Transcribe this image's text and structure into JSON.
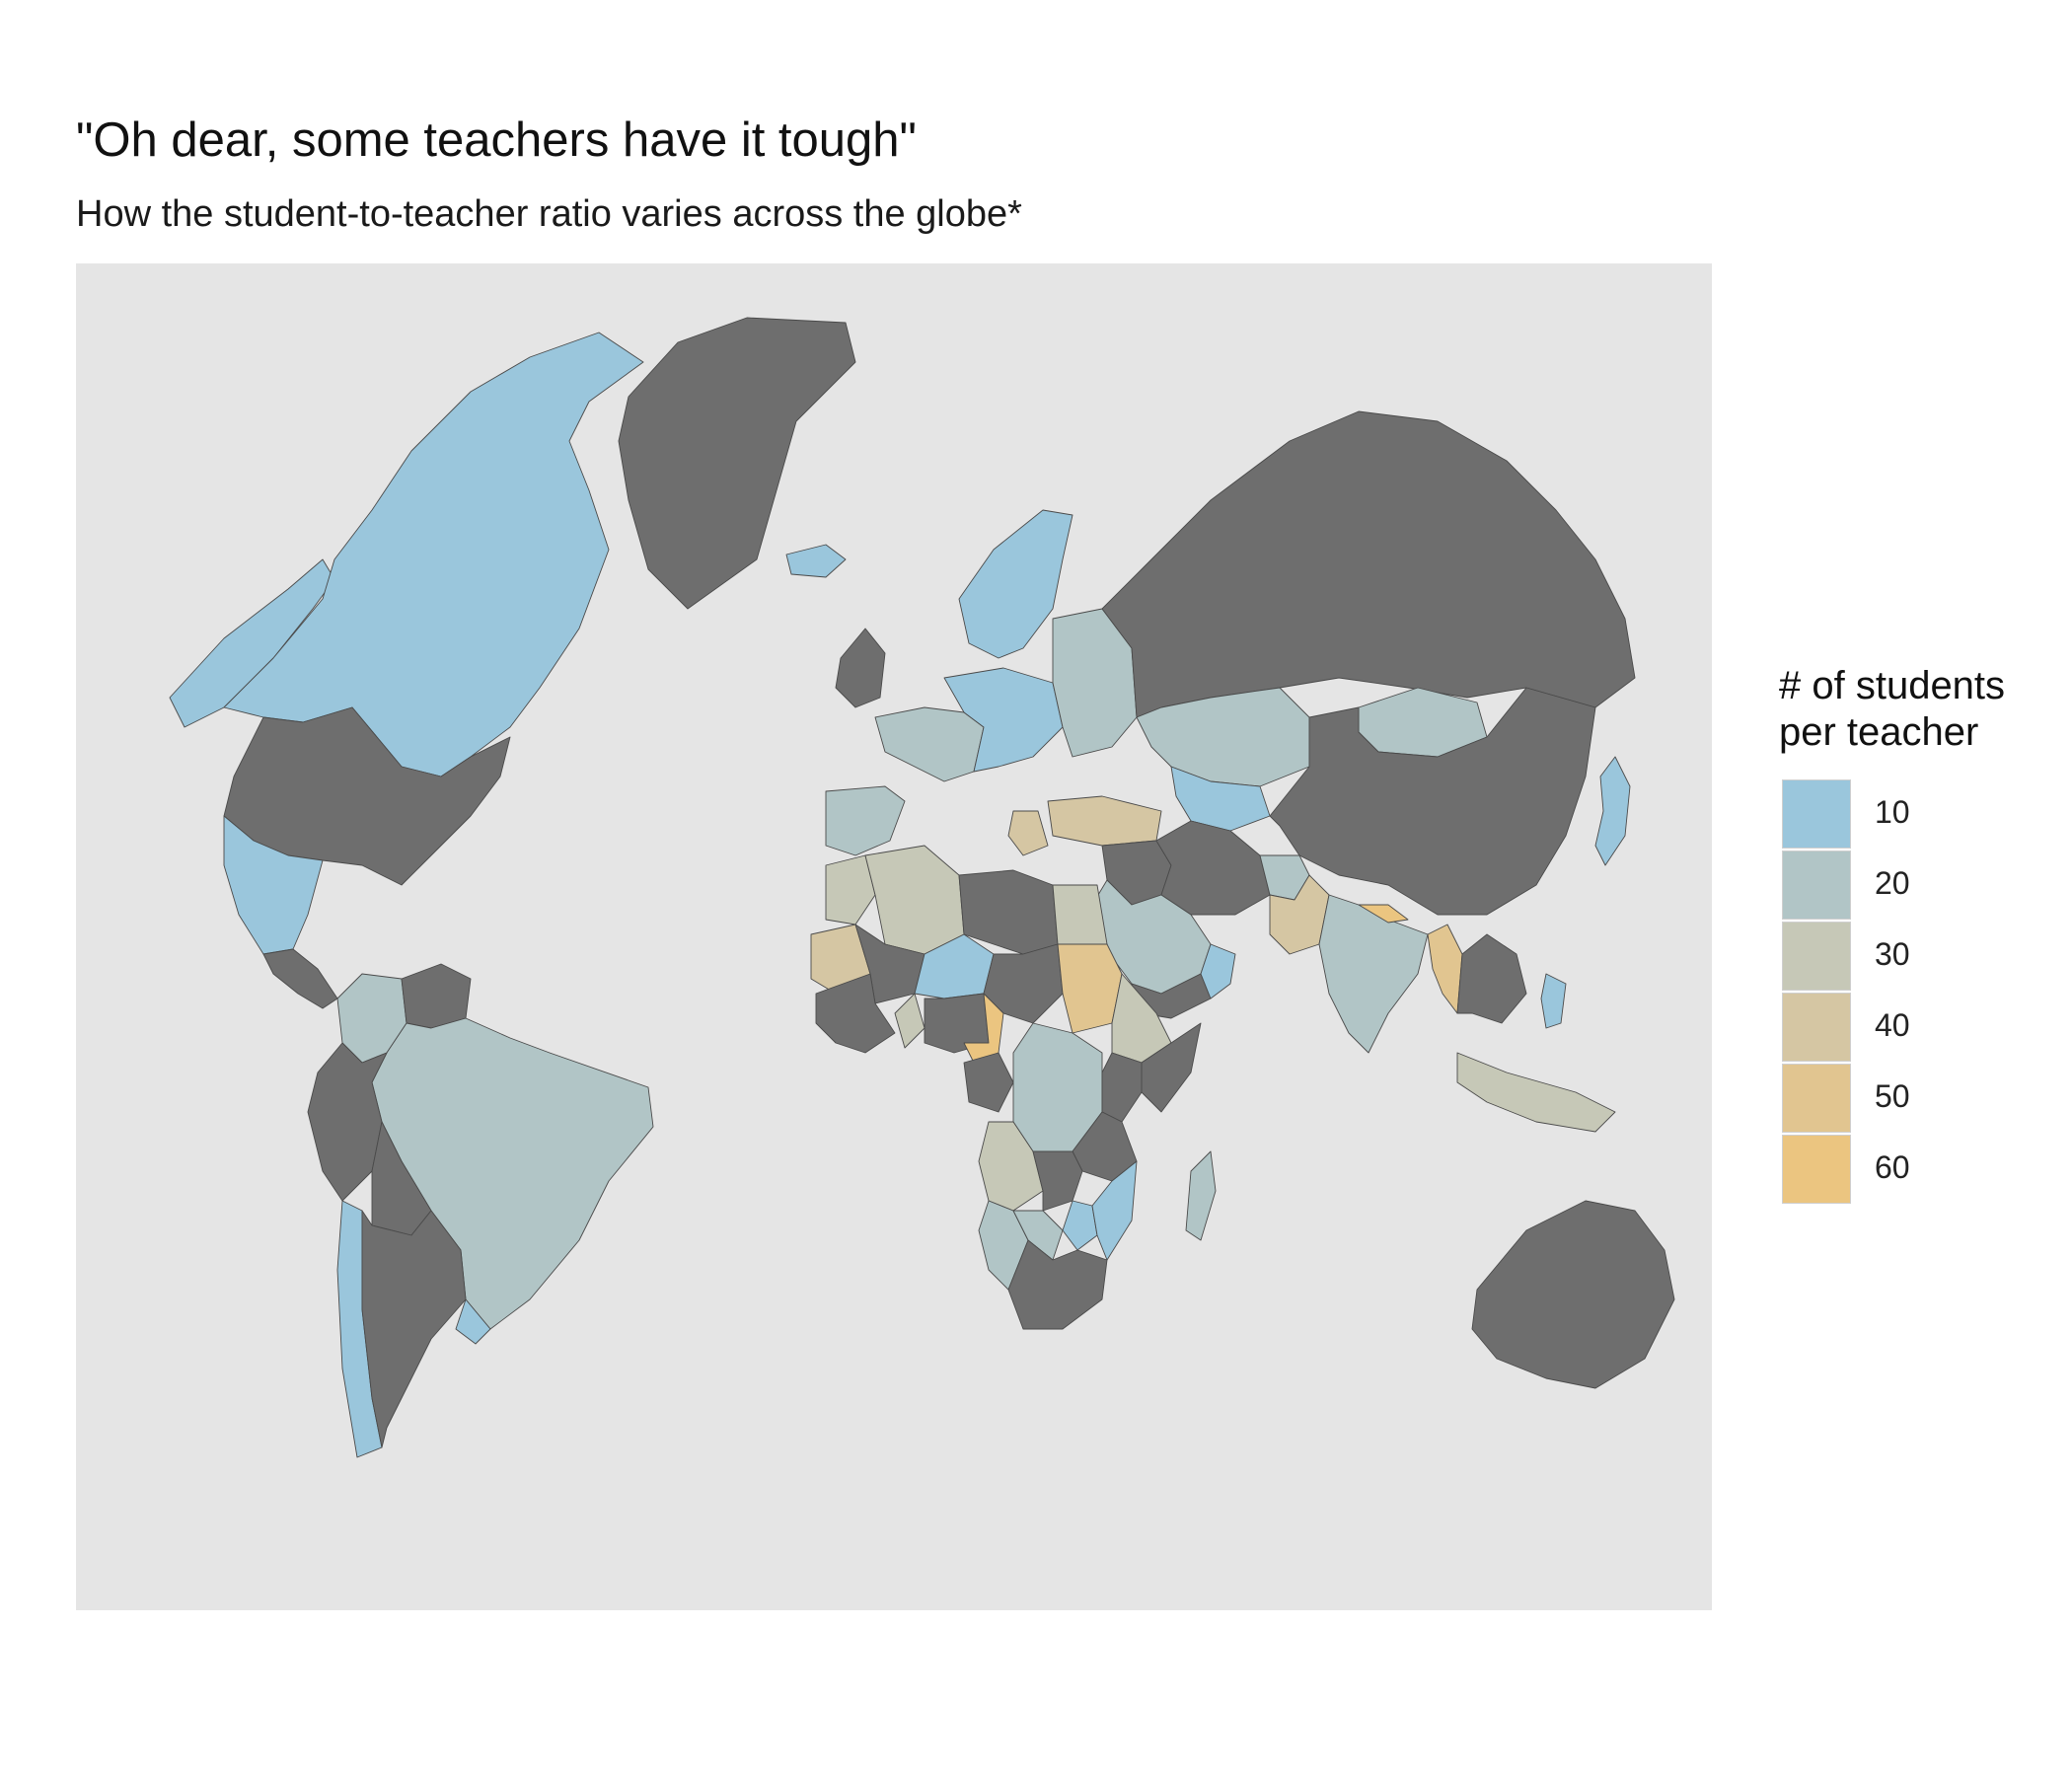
{
  "title": "\"Oh dear, some teachers have it tough\"",
  "subtitle": "How the student-to-teacher ratio varies across the globe*",
  "map": {
    "type": "choropleth",
    "projection": "orthographic-like world view",
    "background_color": "#e5e5e5",
    "missing_data_color": "#6e6e6e",
    "variable": "student-to-teacher ratio"
  },
  "legend": {
    "title": "# of students\nper teacher",
    "entries": [
      {
        "label": "10",
        "color": "#9ac6dc"
      },
      {
        "label": "20",
        "color": "#b1c5c6"
      },
      {
        "label": "30",
        "color": "#c6c8b7"
      },
      {
        "label": "40",
        "color": "#d5c6a3"
      },
      {
        "label": "50",
        "color": "#e1c590"
      },
      {
        "label": "60",
        "color": "#ebc580"
      }
    ]
  },
  "regions": [
    {
      "name": "Canada",
      "bin": "10"
    },
    {
      "name": "Alaska",
      "bin": "10"
    },
    {
      "name": "United States",
      "bin": "none"
    },
    {
      "name": "Greenland",
      "bin": "none"
    },
    {
      "name": "Mexico",
      "bin": "10"
    },
    {
      "name": "Central America",
      "bin": "none"
    },
    {
      "name": "Colombia",
      "bin": "20"
    },
    {
      "name": "Venezuela",
      "bin": "none"
    },
    {
      "name": "Brazil",
      "bin": "20"
    },
    {
      "name": "Peru",
      "bin": "none"
    },
    {
      "name": "Bolivia",
      "bin": "none"
    },
    {
      "name": "Argentina",
      "bin": "none"
    },
    {
      "name": "Chile",
      "bin": "10"
    },
    {
      "name": "Uruguay",
      "bin": "10"
    },
    {
      "name": "Iceland",
      "bin": "10"
    },
    {
      "name": "United Kingdom",
      "bin": "none"
    },
    {
      "name": "Scandinavia",
      "bin": "10"
    },
    {
      "name": "Western Europe",
      "bin": "20"
    },
    {
      "name": "Central Europe",
      "bin": "10"
    },
    {
      "name": "Eastern Europe",
      "bin": "20"
    },
    {
      "name": "Iberia",
      "bin": "20"
    },
    {
      "name": "Turkey",
      "bin": "40"
    },
    {
      "name": "Greece",
      "bin": "40"
    },
    {
      "name": "Russia",
      "bin": "none"
    },
    {
      "name": "Kazakhstan",
      "bin": "20"
    },
    {
      "name": "Central Asia",
      "bin": "10"
    },
    {
      "name": "Mongolia",
      "bin": "20"
    },
    {
      "name": "China",
      "bin": "none"
    },
    {
      "name": "Japan",
      "bin": "10"
    },
    {
      "name": "Iran",
      "bin": "none"
    },
    {
      "name": "Iraq",
      "bin": "none"
    },
    {
      "name": "Saudi Arabia",
      "bin": "20"
    },
    {
      "name": "Yemen",
      "bin": "none"
    },
    {
      "name": "Oman",
      "bin": "10"
    },
    {
      "name": "Afghanistan",
      "bin": "20"
    },
    {
      "name": "Pakistan",
      "bin": "40"
    },
    {
      "name": "India",
      "bin": "20"
    },
    {
      "name": "Nepal",
      "bin": "60"
    },
    {
      "name": "Myanmar",
      "bin": "50"
    },
    {
      "name": "Indochina",
      "bin": "none"
    },
    {
      "name": "Southeast Asia islands",
      "bin": "30"
    },
    {
      "name": "Philippines",
      "bin": "10"
    },
    {
      "name": "Australia",
      "bin": "none"
    },
    {
      "name": "Morocco",
      "bin": "30"
    },
    {
      "name": "Algeria",
      "bin": "30"
    },
    {
      "name": "Libya",
      "bin": "none"
    },
    {
      "name": "Egypt",
      "bin": "30"
    },
    {
      "name": "Mauritania",
      "bin": "40"
    },
    {
      "name": "Mali",
      "bin": "none"
    },
    {
      "name": "Niger",
      "bin": "10"
    },
    {
      "name": "Chad",
      "bin": "none"
    },
    {
      "name": "Sudan",
      "bin": "50"
    },
    {
      "name": "Ethiopia",
      "bin": "30"
    },
    {
      "name": "Somalia",
      "bin": "none"
    },
    {
      "name": "West Africa",
      "bin": "none"
    },
    {
      "name": "Ghana",
      "bin": "30"
    },
    {
      "name": "Nigeria",
      "bin": "none"
    },
    {
      "name": "Cameroon",
      "bin": "60"
    },
    {
      "name": "Gabon/Congo",
      "bin": "none"
    },
    {
      "name": "DR Congo",
      "bin": "20"
    },
    {
      "name": "Kenya",
      "bin": "none"
    },
    {
      "name": "Tanzania",
      "bin": "none"
    },
    {
      "name": "Angola",
      "bin": "30"
    },
    {
      "name": "Zambia",
      "bin": "none"
    },
    {
      "name": "Namibia",
      "bin": "20"
    },
    {
      "name": "Botswana",
      "bin": "20"
    },
    {
      "name": "Zimbabwe",
      "bin": "10"
    },
    {
      "name": "Mozambique",
      "bin": "10"
    },
    {
      "name": "Madagascar",
      "bin": "20"
    },
    {
      "name": "South Africa",
      "bin": "none"
    }
  ]
}
